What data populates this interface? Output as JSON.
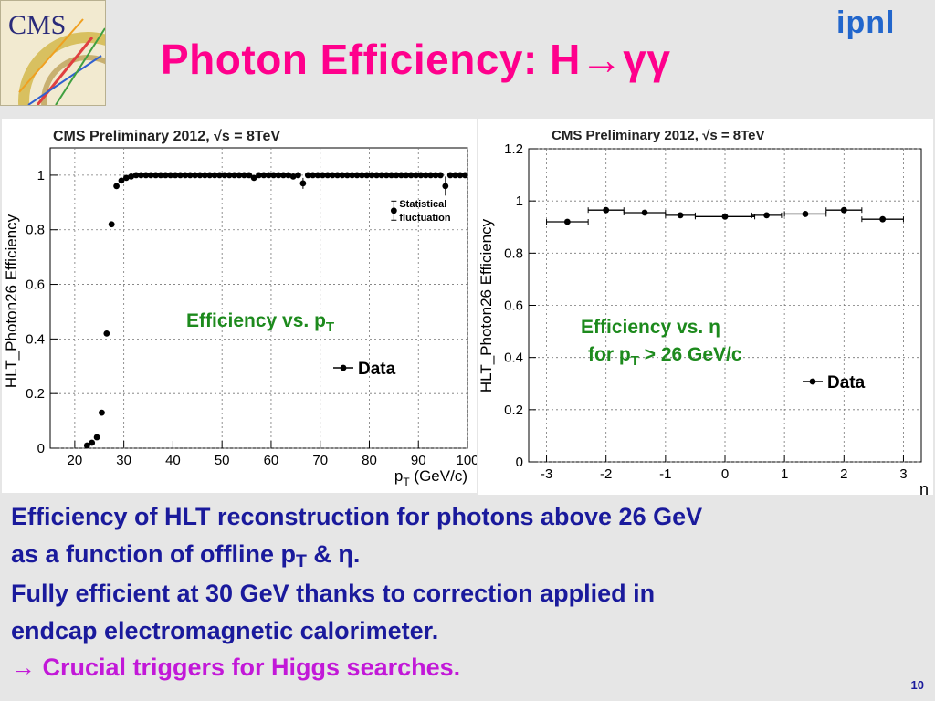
{
  "slide": {
    "title": "Photon Efficiency: H→γγ",
    "cms_logo_text": "CMS",
    "ipnl_logo_text": "ipnl",
    "page_number": "10",
    "bottom_text": {
      "line1": "Efficiency of HLT reconstruction for photons above 26 GeV",
      "line2_prefix": "as a function of offline p",
      "line2_sub": "T",
      "line2_suffix": "  & η.",
      "line3": "Fully efficient at 30 GeV thanks to correction applied in",
      "line4": "endcap electromagnetic calorimeter.",
      "line5_arrow": "→",
      "line5": " Crucial triggers for Higgs searches."
    },
    "colors": {
      "title": "#ff008c",
      "body": "#1a1a9c",
      "highlight": "#c218d8",
      "annotation": "#1d8a1d"
    }
  },
  "chart_data": [
    {
      "type": "scatter",
      "header": "CMS Preliminary 2012, √s = 8TeV",
      "ylabel": "HLT_Photon26   Efficiency",
      "xlabel": "p_T (GeV/c)",
      "xlim": [
        15,
        100
      ],
      "ylim": [
        0,
        1.1
      ],
      "xticks": [
        20,
        30,
        40,
        50,
        60,
        70,
        80,
        90,
        100
      ],
      "yticks": [
        0,
        0.2,
        0.4,
        0.6,
        0.8,
        1
      ],
      "grid": true,
      "legend": {
        "label": "Data",
        "placement": "right-middle"
      },
      "annotation_main": {
        "text": "Efficiency vs. p",
        "sub": "T"
      },
      "annotation_stat": {
        "line1": "Statistical",
        "line2": "fluctuation",
        "x": 85,
        "y": 0.87,
        "err": 0.035
      },
      "series": [
        {
          "x": [
            22.5,
            23.5,
            24.5,
            25.5,
            26.5,
            27.5,
            28.5,
            29.5,
            30.5,
            31.5,
            32.5,
            33.5,
            34.5,
            35.5,
            36.5,
            37.5,
            38.5,
            39.5,
            40.5,
            41.5,
            42.5,
            43.5,
            44.5,
            45.5,
            46.5,
            47.5,
            48.5,
            49.5,
            50.5,
            51.5,
            52.5,
            53.5,
            54.5,
            55.5,
            56.5,
            57.5,
            58.5,
            59.5,
            60.5,
            61.5,
            62.5,
            63.5,
            64.5,
            65.5,
            66.5,
            67.5,
            68.5,
            69.5,
            70.5,
            71.5,
            72.5,
            73.5,
            74.5,
            75.5,
            76.5,
            77.5,
            78.5,
            79.5,
            80.5,
            81.5,
            82.5,
            83.5,
            84.5,
            85.5,
            86.5,
            87.5,
            88.5,
            89.5,
            90.5,
            91.5,
            92.5,
            93.5,
            94.5,
            95.5,
            96.5,
            97.5,
            98.5,
            99.5
          ],
          "y": [
            0.01,
            0.02,
            0.04,
            0.13,
            0.42,
            0.82,
            0.96,
            0.98,
            0.99,
            0.995,
            1,
            1,
            1,
            1,
            1,
            1,
            1,
            1,
            1,
            1,
            1,
            1,
            1,
            1,
            1,
            1,
            1,
            1,
            1,
            1,
            1,
            1,
            1,
            1,
            0.99,
            1,
            1,
            1,
            1,
            1,
            1,
            1,
            0.995,
            1,
            0.97,
            1,
            1,
            1,
            1,
            1,
            1,
            1,
            1,
            1,
            1,
            1,
            1,
            1,
            1,
            1,
            1,
            1,
            1,
            1,
            1,
            1,
            1,
            1,
            1,
            1,
            1,
            1,
            1,
            0.96,
            1,
            1,
            1,
            1
          ],
          "yerr": [
            0.005,
            0.006,
            0.008,
            0.01,
            0.01,
            0.008,
            0.006,
            0.004,
            0.003,
            0.003,
            0.002,
            0.002,
            0.002,
            0.002,
            0.002,
            0.002,
            0.002,
            0.002,
            0.002,
            0.002,
            0.002,
            0.002,
            0.002,
            0.002,
            0.002,
            0.002,
            0.002,
            0.002,
            0.002,
            0.002,
            0.002,
            0.002,
            0.002,
            0.002,
            0.004,
            0.003,
            0.003,
            0.003,
            0.003,
            0.003,
            0.003,
            0.003,
            0.004,
            0.005,
            0.02,
            0.005,
            0.005,
            0.005,
            0.005,
            0.005,
            0.005,
            0.005,
            0.005,
            0.005,
            0.005,
            0.005,
            0.005,
            0.005,
            0.005,
            0.006,
            0.006,
            0.006,
            0.006,
            0.006,
            0.006,
            0.006,
            0.006,
            0.006,
            0.006,
            0.006,
            0.006,
            0.006,
            0.006,
            0.035,
            0.008,
            0.008,
            0.008,
            0.008
          ]
        }
      ]
    },
    {
      "type": "scatter",
      "header": "CMS Preliminary 2012, √s = 8TeV",
      "ylabel": "HLT_Photon26   Efficiency",
      "xlabel": "η",
      "xlim": [
        -3.3,
        3.3
      ],
      "ylim": [
        0,
        1.2
      ],
      "xticks": [
        -3,
        -2,
        -1,
        0,
        1,
        2,
        3
      ],
      "yticks": [
        0,
        0.2,
        0.4,
        0.6,
        0.8,
        1,
        1.2
      ],
      "grid": true,
      "legend": {
        "label": "Data",
        "placement": "right-middle"
      },
      "annotation_main": {
        "line1": "Efficiency vs. η",
        "line2_prefix": "for p",
        "line2_sub": "T",
        "line2_suffix": " > 26 GeV/c"
      },
      "series": [
        {
          "x": [
            -2.65,
            -2.0,
            -1.35,
            -0.75,
            0.0,
            0.7,
            1.35,
            2.0,
            2.65
          ],
          "xerr": [
            0.35,
            0.3,
            0.35,
            0.25,
            0.5,
            0.25,
            0.35,
            0.3,
            0.35
          ],
          "y": [
            0.92,
            0.965,
            0.955,
            0.945,
            0.94,
            0.945,
            0.95,
            0.965,
            0.93
          ]
        }
      ]
    }
  ]
}
